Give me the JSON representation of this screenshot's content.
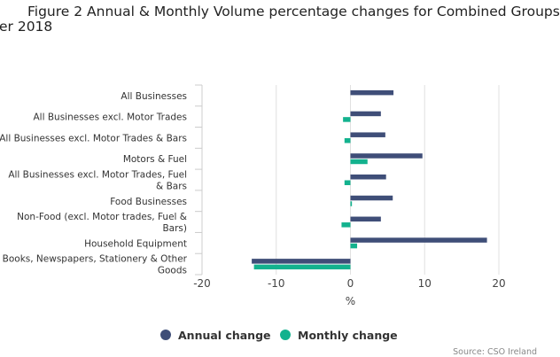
{
  "title": {
    "line1": "Figure 2 Annual & Monthly Volume percentage changes for Combined Groups",
    "line2": "er 2018"
  },
  "source": "Source: CSO Ireland",
  "colors": {
    "annual": "#3f4e78",
    "monthly": "#13b28e",
    "grid": "#e0e0e0",
    "axis": "#cccccc"
  },
  "chart_data": {
    "type": "bar",
    "orientation": "horizontal",
    "title": "Figure 2 Annual & Monthly Volume percentage changes for Combined Groups",
    "xlabel": "%",
    "xlim": [
      -20,
      22
    ],
    "xticks": [
      "-20",
      "-10",
      "0",
      "10",
      "20"
    ],
    "xtick_values": [
      -20,
      -10,
      0,
      10,
      20
    ],
    "grid": true,
    "legend_position": "bottom",
    "categories": [
      [
        "All Businesses"
      ],
      [
        "All Businesses excl. Motor Trades"
      ],
      [
        "All Businesses excl. Motor Trades & Bars"
      ],
      [
        "Motors & Fuel"
      ],
      [
        "All Businesses excl. Motor Trades, Fuel",
        "& Bars"
      ],
      [
        "Food Businesses"
      ],
      [
        "Non-Food (excl. Motor trades, Fuel &",
        "Bars)"
      ],
      [
        "Household Equipment"
      ],
      [
        "Books, Newspapers, Stationery & Other",
        "Goods"
      ]
    ],
    "series": [
      {
        "name": "Annual change",
        "values": [
          5.8,
          4.1,
          4.7,
          9.7,
          4.8,
          5.7,
          4.1,
          18.4,
          -13.3
        ]
      },
      {
        "name": "Monthly change",
        "values": [
          0.0,
          -1.0,
          -0.8,
          2.3,
          -0.8,
          0.2,
          -1.2,
          0.9,
          -13.0
        ]
      }
    ]
  }
}
